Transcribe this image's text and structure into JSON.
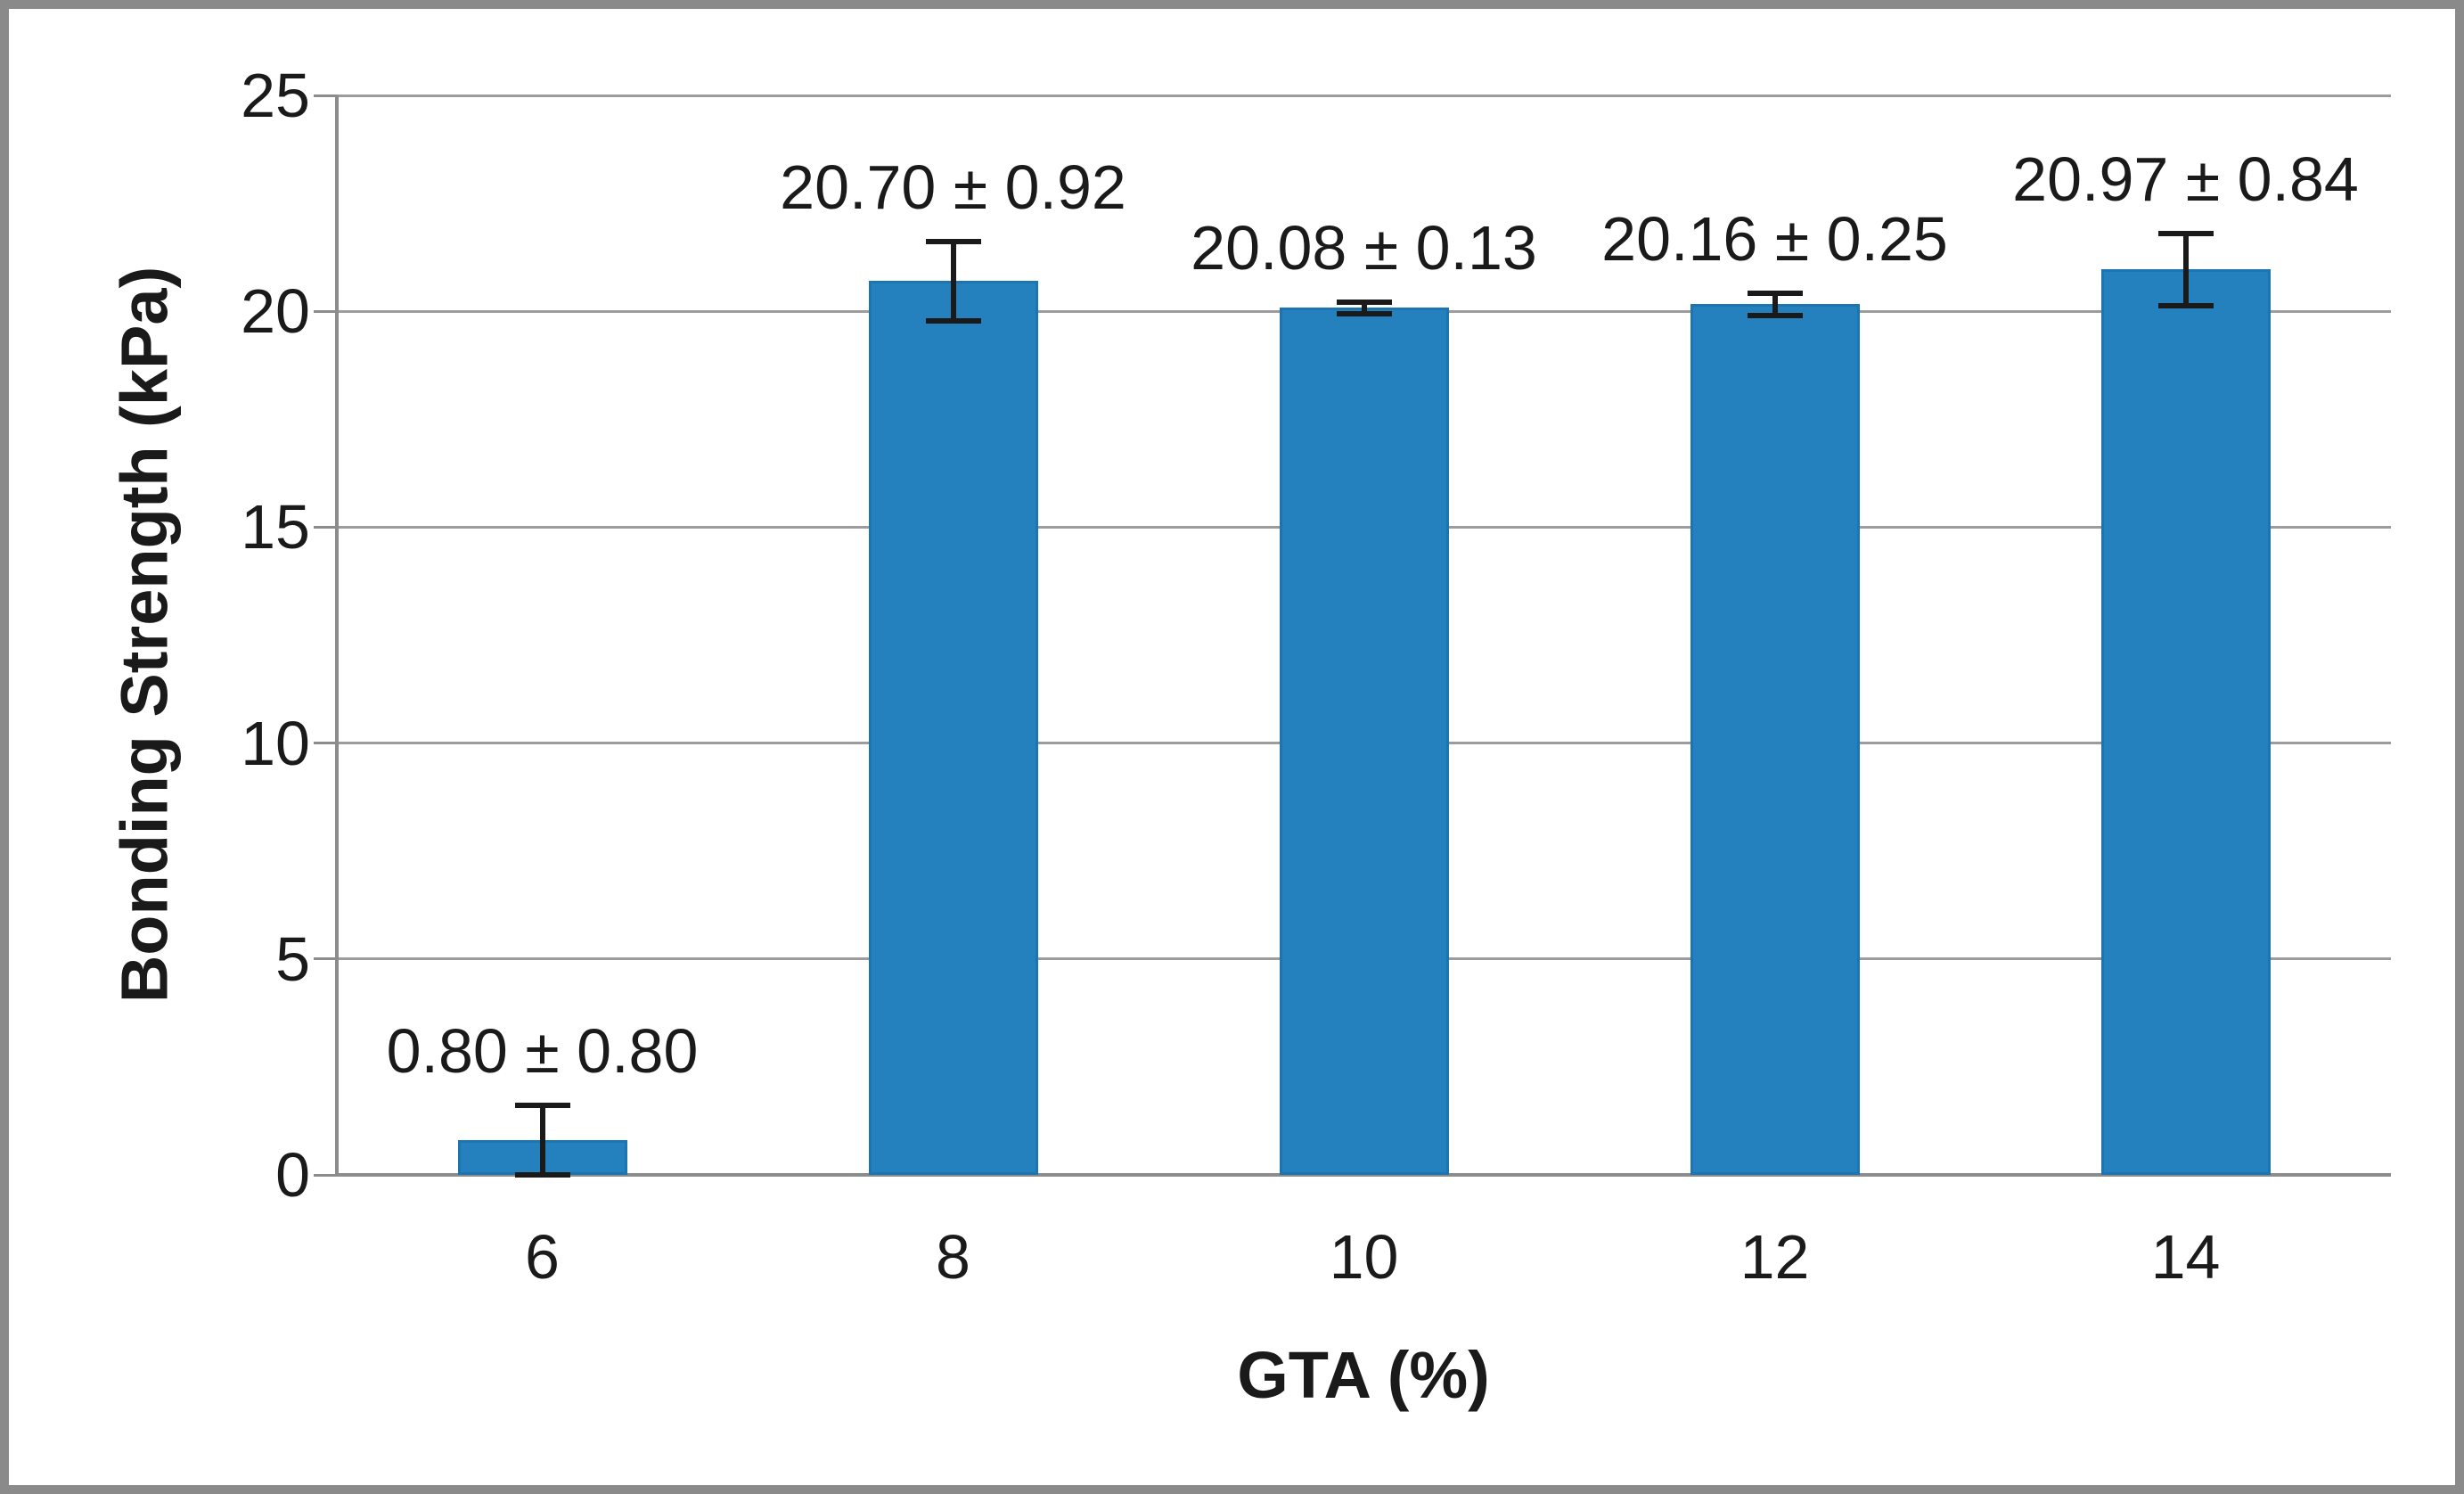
{
  "chart_data": {
    "type": "bar",
    "title": "",
    "xlabel": "GTA (%)",
    "ylabel": "Bonding Strength (kPa)",
    "categories": [
      "6",
      "8",
      "10",
      "12",
      "14"
    ],
    "series": [
      {
        "name": "Bonding Strength",
        "values": [
          0.8,
          20.7,
          20.08,
          20.16,
          20.97
        ],
        "errors": [
          0.8,
          0.92,
          0.13,
          0.25,
          0.84
        ]
      }
    ],
    "data_labels": [
      "0.80 ± 0.80",
      "20.70 ± 0.92",
      "20.08 ± 0.13",
      "20.16 ± 0.25",
      "20.97 ± 0.84"
    ],
    "y_ticks": [
      "0",
      "5",
      "10",
      "15",
      "20",
      "25"
    ],
    "ylim": [
      0,
      25
    ],
    "grid": true,
    "legend": "none",
    "colors": {
      "bar_fill": "#2481BE",
      "gridline": "#9c9c9c",
      "axis_line": "#8c8c8c",
      "error_bar": "#1a1a1a",
      "text": "#1a1a1a",
      "frame_border": "#8a8a8a",
      "background": "#ffffff"
    }
  }
}
